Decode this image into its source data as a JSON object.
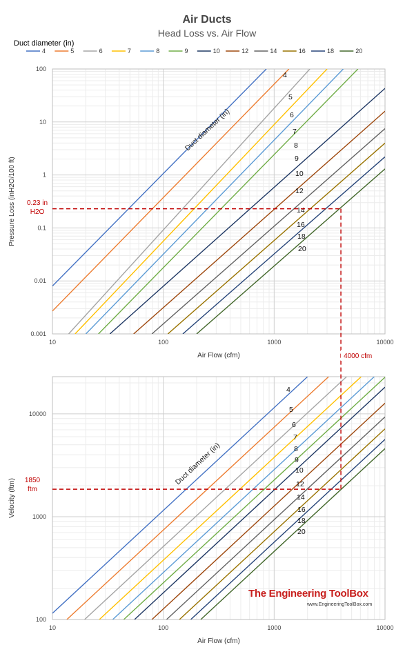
{
  "chart_data": [
    {
      "type": "line",
      "title": "Air Ducts",
      "subtitle": "Head Loss vs. Air Flow",
      "legend_title": "Duct diameter (in)",
      "legend_placement": "top",
      "xlabel": "Air Flow (cfm)",
      "ylabel": "Pressure Loss (inH2O/100 ft)",
      "x_scale": "log",
      "y_scale": "log",
      "xlim": [
        10,
        10000
      ],
      "ylim": [
        0.001,
        100
      ],
      "x_ticks": [
        "10",
        "100",
        "1000",
        "10000"
      ],
      "y_ticks": [
        "0.001",
        "0.01",
        "0.1",
        "1",
        "10",
        "100"
      ],
      "grid": true,
      "curve_label": "Duct diameter (in)",
      "series": [
        {
          "name": "4",
          "color": "#4472c4",
          "x": [
            10,
            850
          ],
          "y": [
            0.008,
            100
          ]
        },
        {
          "name": "5",
          "color": "#ed7d31",
          "x": [
            10,
            1360
          ],
          "y": [
            0.0027,
            100
          ]
        },
        {
          "name": "6",
          "color": "#a5a5a5",
          "x": [
            14,
            2100
          ],
          "y": [
            0.001,
            100
          ]
        },
        {
          "name": "7",
          "color": "#ffc000",
          "x": [
            16,
            3000
          ],
          "y": [
            0.001,
            100
          ]
        },
        {
          "name": "8",
          "color": "#5b9bd5",
          "x": [
            20,
            4200
          ],
          "y": [
            0.001,
            100
          ]
        },
        {
          "name": "9",
          "color": "#70ad47",
          "x": [
            26,
            5700
          ],
          "y": [
            0.001,
            100
          ]
        },
        {
          "name": "10",
          "color": "#1f3864",
          "x": [
            33,
            10000
          ],
          "y": [
            0.001,
            43
          ]
        },
        {
          "name": "12",
          "color": "#9e480e",
          "x": [
            54,
            10000
          ],
          "y": [
            0.001,
            16
          ]
        },
        {
          "name": "14",
          "color": "#636363",
          "x": [
            79,
            10000
          ],
          "y": [
            0.001,
            7.5
          ]
        },
        {
          "name": "16",
          "color": "#997300",
          "x": [
            110,
            10000
          ],
          "y": [
            0.001,
            4
          ]
        },
        {
          "name": "18",
          "color": "#264478",
          "x": [
            150,
            10000
          ],
          "y": [
            0.001,
            2.2
          ]
        },
        {
          "name": "20",
          "color": "#43682b",
          "x": [
            200,
            10000
          ],
          "y": [
            0.001,
            1.3
          ]
        }
      ],
      "annotations": [
        {
          "text_lines": [
            "0.23 in",
            "H2O"
          ],
          "x": 4000,
          "y": 0.23
        }
      ]
    },
    {
      "type": "line",
      "xlabel": "Air Flow (cfm)",
      "ylabel": "Velocity (ftm)",
      "x_scale": "log",
      "y_scale": "log",
      "xlim": [
        10,
        10000
      ],
      "ylim": [
        100,
        23000
      ],
      "x_ticks": [
        "10",
        "100",
        "1000",
        "10000"
      ],
      "y_ticks": [
        "100",
        "1000",
        "10000"
      ],
      "grid": true,
      "curve_label": "Duct diameter (in)",
      "series": [
        {
          "name": "4",
          "color": "#4472c4",
          "x": [
            10,
            2000
          ],
          "y": [
            115,
            23000
          ]
        },
        {
          "name": "5",
          "color": "#ed7d31",
          "x": [
            13.5,
            3100
          ],
          "y": [
            100,
            23000
          ]
        },
        {
          "name": "6",
          "color": "#a5a5a5",
          "x": [
            19.5,
            4500
          ],
          "y": [
            100,
            23000
          ]
        },
        {
          "name": "7",
          "color": "#ffc000",
          "x": [
            26.5,
            6100
          ],
          "y": [
            100,
            23000
          ]
        },
        {
          "name": "8",
          "color": "#5b9bd5",
          "x": [
            35,
            8000
          ],
          "y": [
            100,
            23000
          ]
        },
        {
          "name": "9",
          "color": "#70ad47",
          "x": [
            44,
            10000
          ],
          "y": [
            100,
            22700
          ]
        },
        {
          "name": "10",
          "color": "#1f3864",
          "x": [
            55,
            10000
          ],
          "y": [
            100,
            18200
          ]
        },
        {
          "name": "12",
          "color": "#9e480e",
          "x": [
            79,
            10000
          ],
          "y": [
            100,
            12700
          ]
        },
        {
          "name": "14",
          "color": "#636363",
          "x": [
            107,
            10000
          ],
          "y": [
            100,
            9350
          ]
        },
        {
          "name": "16",
          "color": "#997300",
          "x": [
            140,
            10000
          ],
          "y": [
            100,
            7150
          ]
        },
        {
          "name": "18",
          "color": "#264478",
          "x": [
            177,
            10000
          ],
          "y": [
            100,
            5650
          ]
        },
        {
          "name": "20",
          "color": "#43682b",
          "x": [
            218,
            10000
          ],
          "y": [
            100,
            4590
          ]
        }
      ],
      "annotations": [
        {
          "text_lines": [
            "1850",
            "ftm"
          ],
          "x": 4000,
          "y": 1850
        },
        {
          "text_lines": [
            "4000 cfm"
          ],
          "x": 4000
        }
      ]
    }
  ],
  "branding": {
    "name": "The Engineering ToolBox",
    "url": "www.EngineeringToolBox.com"
  }
}
